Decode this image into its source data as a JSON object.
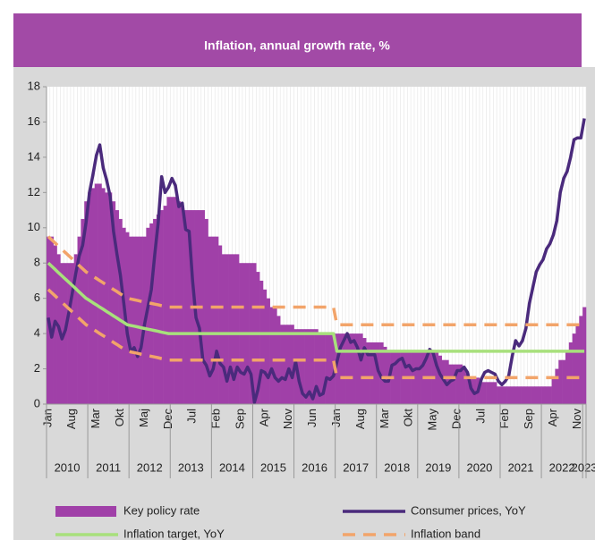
{
  "chart_data": {
    "type": "combo",
    "title": "Inflation, annual growth rate, %",
    "categories": [
      "Jan",
      null,
      null,
      null,
      null,
      null,
      null,
      "Aug",
      null,
      null,
      null,
      null,
      null,
      null,
      "Mar",
      null,
      null,
      null,
      null,
      null,
      null,
      "Okt",
      null,
      null,
      null,
      null,
      null,
      null,
      "Maj",
      null,
      null,
      null,
      null,
      null,
      null,
      "Dec",
      null,
      null,
      null,
      null,
      null,
      null,
      "Jul",
      null,
      null,
      null,
      null,
      null,
      null,
      "Feb",
      null,
      null,
      null,
      null,
      null,
      null,
      "Sep",
      null,
      null,
      null,
      null,
      null,
      null,
      "Apr",
      null,
      null,
      null,
      null,
      null,
      null,
      "Nov",
      null,
      null,
      null,
      null,
      null,
      null,
      "Jun",
      null,
      null,
      null,
      null,
      null,
      null,
      "Jan",
      null,
      null,
      null,
      null,
      null,
      null,
      "Aug",
      null,
      null,
      null,
      null,
      null,
      null,
      "Mar",
      null,
      null,
      null,
      null,
      null,
      null,
      "Okt",
      null,
      null,
      null,
      null,
      null,
      null,
      "May",
      null,
      null,
      null,
      null,
      null,
      null,
      "Dec",
      null,
      null,
      null,
      null,
      null,
      null,
      "Jul",
      null,
      null,
      null,
      null,
      null,
      null,
      "Feb",
      null,
      null,
      null,
      null,
      null,
      null,
      "Sep",
      null,
      null,
      null,
      null,
      null,
      null,
      "Apr",
      null,
      null,
      null,
      null,
      null,
      null,
      "Nov",
      null,
      null
    ],
    "years": [
      "2010",
      "2011",
      "2012",
      "2013",
      "2014",
      "2015",
      "2016",
      "2017",
      "2018",
      "2019",
      "2020",
      "2021",
      "2022",
      "2023"
    ],
    "ylim": [
      0,
      18
    ],
    "yticks": [
      0,
      2,
      4,
      6,
      8,
      10,
      12,
      14,
      16,
      18
    ],
    "xgrid": true,
    "series": [
      {
        "name": "Key policy rate",
        "kind": "bar",
        "color": "#a040a8",
        "values": [
          9.5,
          9.5,
          9,
          8.5,
          8,
          8,
          8,
          8,
          8.5,
          9.5,
          10.5,
          11.5,
          12,
          12.25,
          12.5,
          12.5,
          12.25,
          12,
          12,
          11.5,
          11,
          10.5,
          10,
          9.75,
          9.5,
          9.5,
          9.5,
          9.5,
          9.5,
          10,
          10.25,
          10.5,
          10.75,
          11,
          11.25,
          11.75,
          11.75,
          11.75,
          11.5,
          11.25,
          11,
          11,
          11,
          11,
          11,
          11,
          10.5,
          9.5,
          9.5,
          9.5,
          9,
          8.5,
          8.5,
          8.5,
          8.5,
          8.5,
          8,
          8,
          8,
          8,
          8,
          7.5,
          7,
          6.5,
          6,
          5.5,
          5.5,
          5,
          4.5,
          4.5,
          4.5,
          4.5,
          4.25,
          4.25,
          4.25,
          4.25,
          4.25,
          4.25,
          4.25,
          4,
          4,
          4,
          4,
          4,
          4,
          4,
          4,
          4,
          4,
          4,
          4,
          4,
          3.75,
          3.5,
          3.5,
          3.5,
          3.5,
          3.5,
          3.25,
          3,
          3,
          3,
          3,
          3,
          3,
          3,
          3,
          3,
          3,
          3,
          3,
          3,
          3,
          3,
          2.75,
          2.5,
          2.5,
          2.25,
          2.25,
          2.25,
          2.25,
          2,
          1.75,
          1.5,
          1.5,
          1.5,
          1.25,
          1.25,
          1.25,
          1.25,
          1.25,
          1,
          1,
          1,
          1,
          1,
          1,
          1,
          1,
          1,
          1,
          1,
          1,
          1,
          1,
          1,
          1,
          1.5,
          2,
          2.5,
          2.5,
          3,
          3.5,
          4,
          4.5,
          5,
          5.5
        ]
      },
      {
        "name": "Consumer prices, YoY",
        "kind": "line",
        "color": "#4a2a7c",
        "width": 3.5,
        "values": [
          4.9,
          3.8,
          4.7,
          4.4,
          3.7,
          4.2,
          5.2,
          6.3,
          7.4,
          8.4,
          9.0,
          10.3,
          12.0,
          13.0,
          14.1,
          14.7,
          13.4,
          12.7,
          11.8,
          9.8,
          8.5,
          7.3,
          5.7,
          4.0,
          3.0,
          3.2,
          2.7,
          3.2,
          4.5,
          5.5,
          6.5,
          8.5,
          10.3,
          12.9,
          12.0,
          12.3,
          12.8,
          12.4,
          11.2,
          11.4,
          9.9,
          9.8,
          7.0,
          4.9,
          4.3,
          2.5,
          2.2,
          1.6,
          2.0,
          3.0,
          2.3,
          2.1,
          1.3,
          2.1,
          1.4,
          2.1,
          1.8,
          1.7,
          2.1,
          1.7,
          0.1,
          0.8,
          1.9,
          1.8,
          1.5,
          2.0,
          1.5,
          1.3,
          1.5,
          1.4,
          2.0,
          1.5,
          2.4,
          1.3,
          0.6,
          0.4,
          0.7,
          0.3,
          1.0,
          0.5,
          0.6,
          1.5,
          1.4,
          1.6,
          2.4,
          3.2,
          3.6,
          4.0,
          3.5,
          3.6,
          3.2,
          2.5,
          3.2,
          2.8,
          2.8,
          2.8,
          1.9,
          1.5,
          1.3,
          1.3,
          2.2,
          2.3,
          2.5,
          2.6,
          2.1,
          2.2,
          1.9,
          2.0,
          2.0,
          2.2,
          2.6,
          3.1,
          2.9,
          2.2,
          1.7,
          1.4,
          1.1,
          1.3,
          1.4,
          1.9,
          1.9,
          2.1,
          1.8,
          0.9,
          0.6,
          0.7,
          1.4,
          1.8,
          1.9,
          1.8,
          1.7,
          1.3,
          1.1,
          1.3,
          1.6,
          2.7,
          3.6,
          3.3,
          3.6,
          4.3,
          5.7,
          6.6,
          7.5,
          7.9,
          8.2,
          8.8,
          9.1,
          9.6,
          10.4,
          12.0,
          12.8,
          13.2,
          14.0,
          15.0,
          15.1,
          15.1,
          16.2
        ]
      },
      {
        "name": "Inflation target, YoY",
        "kind": "line",
        "color": "#a8e07c",
        "width": 3.5,
        "values": [
          8,
          7.82,
          7.64,
          7.45,
          7.27,
          7.09,
          6.91,
          6.73,
          6.55,
          6.36,
          6.18,
          6.0,
          5.88,
          5.75,
          5.63,
          5.5,
          5.38,
          5.25,
          5.13,
          5.0,
          4.88,
          4.75,
          4.63,
          4.5,
          4.46,
          4.42,
          4.38,
          4.33,
          4.29,
          4.25,
          4.21,
          4.17,
          4.13,
          4.08,
          4.04,
          4.0,
          4,
          4,
          4,
          4,
          4,
          4,
          4,
          4,
          4,
          4,
          4,
          4,
          4,
          4,
          4,
          4,
          4,
          4,
          4,
          4,
          4,
          4,
          4,
          4,
          4,
          4,
          4,
          4,
          4,
          4,
          4,
          4,
          4,
          4,
          4,
          4,
          4,
          4,
          4,
          4,
          4,
          4,
          4,
          4,
          4,
          4,
          4,
          4,
          3,
          3,
          3,
          3,
          3,
          3,
          3,
          3,
          3,
          3,
          3,
          3,
          3,
          3,
          3,
          3,
          3,
          3,
          3,
          3,
          3,
          3,
          3,
          3,
          3,
          3,
          3,
          3,
          3,
          3,
          3,
          3,
          3,
          3,
          3,
          3,
          3,
          3,
          3,
          3,
          3,
          3,
          3,
          3,
          3,
          3,
          3,
          3,
          3,
          3,
          3,
          3,
          3,
          3,
          3,
          3,
          3,
          3,
          3,
          3,
          3,
          3,
          3,
          3,
          3,
          3,
          3,
          3,
          3,
          3,
          3,
          3,
          3
        ]
      },
      {
        "name": "Inflation band",
        "kind": "dash",
        "color": "#f2a46a",
        "width": 3.5,
        "values": [
          9.5,
          9.32,
          9.14,
          8.95,
          8.77,
          8.59,
          8.41,
          8.23,
          8.05,
          7.86,
          7.68,
          7.5,
          7.38,
          7.25,
          7.13,
          7.0,
          6.88,
          6.75,
          6.63,
          6.5,
          6.38,
          6.25,
          6.13,
          6.0,
          5.96,
          5.92,
          5.88,
          5.83,
          5.79,
          5.75,
          5.71,
          5.67,
          5.63,
          5.58,
          5.54,
          5.5,
          5.5,
          5.5,
          5.5,
          5.5,
          5.5,
          5.5,
          5.5,
          5.5,
          5.5,
          5.5,
          5.5,
          5.5,
          5.5,
          5.5,
          5.5,
          5.5,
          5.5,
          5.5,
          5.5,
          5.5,
          5.5,
          5.5,
          5.5,
          5.5,
          5.5,
          5.5,
          5.5,
          5.5,
          5.5,
          5.5,
          5.5,
          5.5,
          5.5,
          5.5,
          5.5,
          5.5,
          5.5,
          5.5,
          5.5,
          5.5,
          5.5,
          5.5,
          5.5,
          5.5,
          5.5,
          5.5,
          5.5,
          5.5,
          4.5,
          4.5,
          4.5,
          4.5,
          4.5,
          4.5,
          4.5,
          4.5,
          4.5,
          4.5,
          4.5,
          4.5,
          4.5,
          4.5,
          4.5,
          4.5,
          4.5,
          4.5,
          4.5,
          4.5,
          4.5,
          4.5,
          4.5,
          4.5,
          4.5,
          4.5,
          4.5,
          4.5,
          4.5,
          4.5,
          4.5,
          4.5,
          4.5,
          4.5,
          4.5,
          4.5,
          4.5,
          4.5,
          4.5,
          4.5,
          4.5,
          4.5,
          4.5,
          4.5,
          4.5,
          4.5,
          4.5,
          4.5,
          4.5,
          4.5,
          4.5,
          4.5,
          4.5,
          4.5,
          4.5,
          4.5,
          4.5,
          4.5,
          4.5,
          4.5,
          4.5,
          4.5,
          4.5,
          4.5,
          4.5,
          4.5,
          4.5,
          4.5,
          4.5,
          4.5,
          4.5,
          4.5,
          4.5
        ]
      },
      {
        "kind": "dash",
        "color": "#f2a46a",
        "width": 3.5,
        "values": [
          6.5,
          6.32,
          6.14,
          5.95,
          5.77,
          5.59,
          5.41,
          5.23,
          5.05,
          4.86,
          4.68,
          4.5,
          4.38,
          4.25,
          4.13,
          4.0,
          3.88,
          3.75,
          3.63,
          3.5,
          3.38,
          3.25,
          3.13,
          3.0,
          2.96,
          2.92,
          2.88,
          2.83,
          2.79,
          2.75,
          2.71,
          2.67,
          2.63,
          2.58,
          2.54,
          2.5,
          2.5,
          2.5,
          2.5,
          2.5,
          2.5,
          2.5,
          2.5,
          2.5,
          2.5,
          2.5,
          2.5,
          2.5,
          2.5,
          2.5,
          2.5,
          2.5,
          2.5,
          2.5,
          2.5,
          2.5,
          2.5,
          2.5,
          2.5,
          2.5,
          2.5,
          2.5,
          2.5,
          2.5,
          2.5,
          2.5,
          2.5,
          2.5,
          2.5,
          2.5,
          2.5,
          2.5,
          2.5,
          2.5,
          2.5,
          2.5,
          2.5,
          2.5,
          2.5,
          2.5,
          2.5,
          2.5,
          2.5,
          2.5,
          1.5,
          1.5,
          1.5,
          1.5,
          1.5,
          1.5,
          1.5,
          1.5,
          1.5,
          1.5,
          1.5,
          1.5,
          1.5,
          1.5,
          1.5,
          1.5,
          1.5,
          1.5,
          1.5,
          1.5,
          1.5,
          1.5,
          1.5,
          1.5,
          1.5,
          1.5,
          1.5,
          1.5,
          1.5,
          1.5,
          1.5,
          1.5,
          1.5,
          1.5,
          1.5,
          1.5,
          1.5,
          1.5,
          1.5,
          1.5,
          1.5,
          1.5,
          1.5,
          1.5,
          1.5,
          1.5,
          1.5,
          1.5,
          1.5,
          1.5,
          1.5,
          1.5,
          1.5,
          1.5,
          1.5,
          1.5,
          1.5,
          1.5,
          1.5,
          1.5,
          1.5,
          1.5,
          1.5,
          1.5,
          1.5,
          1.5,
          1.5,
          1.5,
          1.5,
          1.5,
          1.5,
          1.5,
          1.5
        ]
      }
    ]
  }
}
